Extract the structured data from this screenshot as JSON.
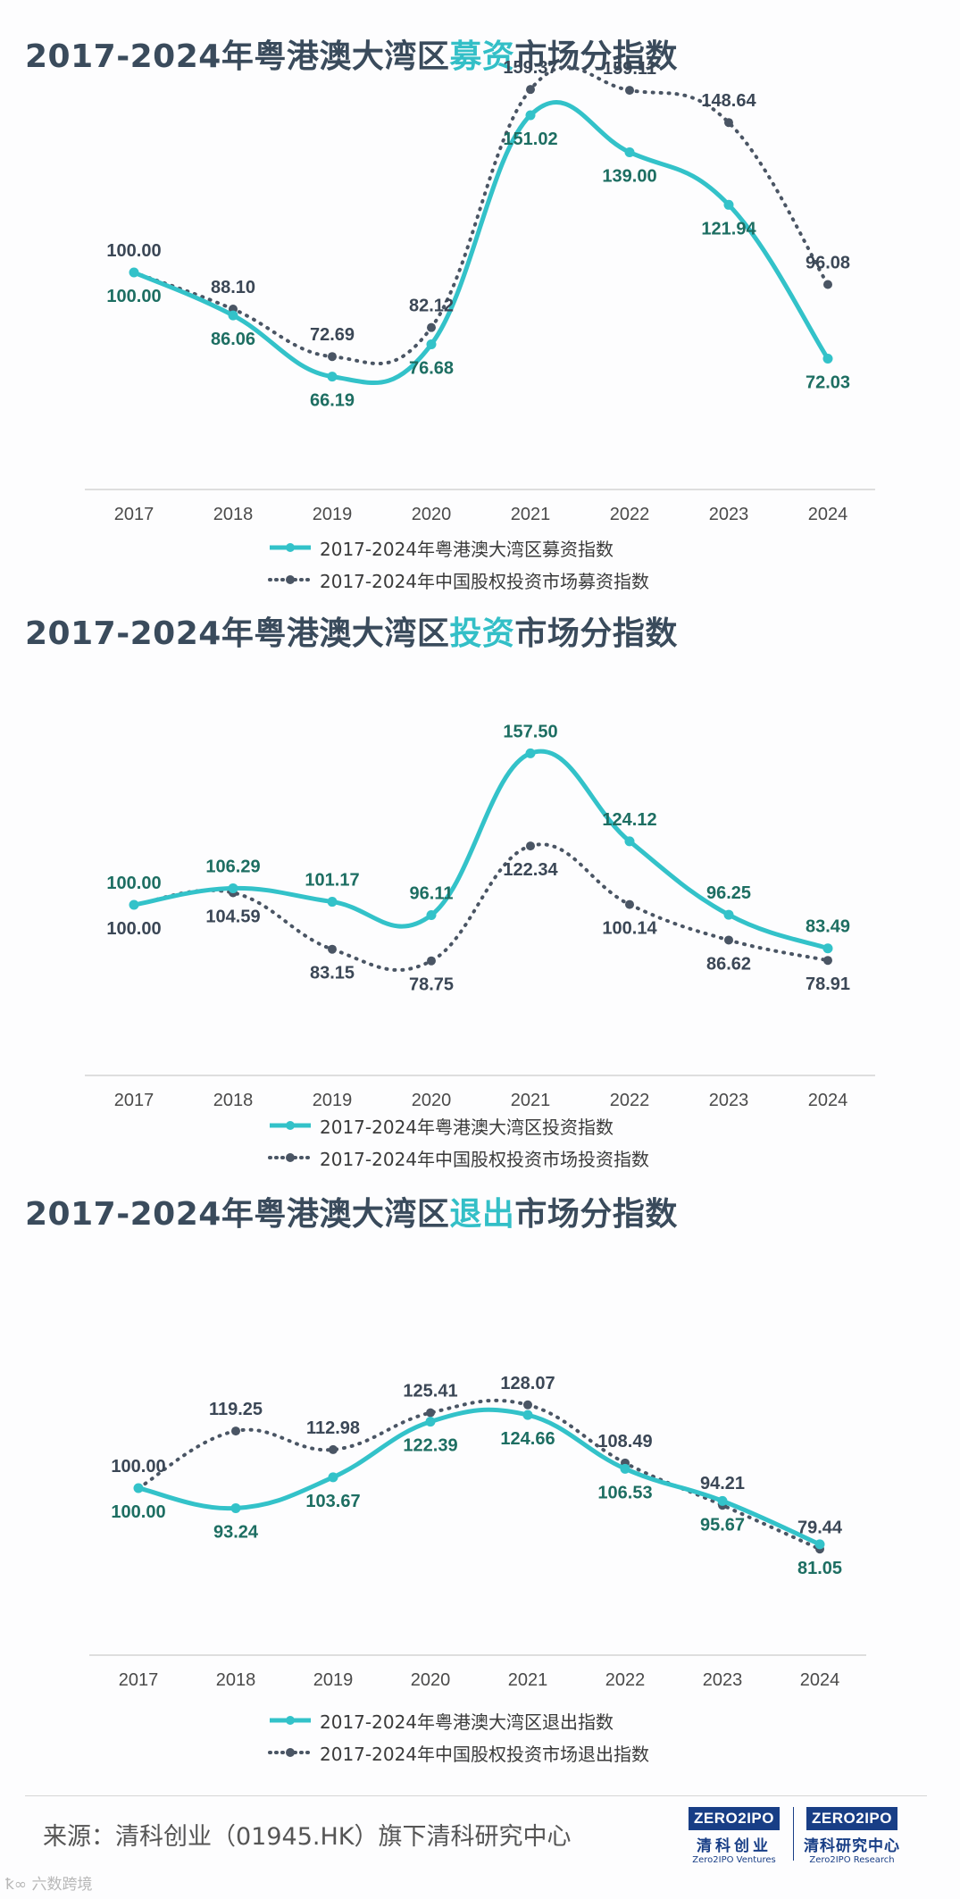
{
  "charts": [
    {
      "title_pre": "2017-2024年粤港澳大湾区",
      "title_hl": "募资",
      "title_post": "市场分指数",
      "legend_a": "2017-2024年粤港澳大湾区募资指数",
      "legend_b": "2017-2024年中国股权投资市场募资指数"
    },
    {
      "title_pre": "2017-2024年粤港澳大湾区",
      "title_hl": "投资",
      "title_post": "市场分指数",
      "legend_a": "2017-2024年粤港澳大湾区投资指数",
      "legend_b": "2017-2024年中国股权投资市场投资指数"
    },
    {
      "title_pre": "2017-2024年粤港澳大湾区",
      "title_hl": "退出",
      "title_post": "市场分指数",
      "legend_a": "2017-2024年粤港澳大湾区退出指数",
      "legend_b": "2017-2024年中国股权投资市场退出指数"
    }
  ],
  "chart_data": [
    {
      "type": "line",
      "title": "2017-2024年粤港澳大湾区募资市场分指数",
      "categories": [
        "2017",
        "2018",
        "2019",
        "2020",
        "2021",
        "2022",
        "2023",
        "2024"
      ],
      "series": [
        {
          "name": "2017-2024年粤港澳大湾区募资指数",
          "values": [
            100.0,
            86.06,
            66.19,
            76.68,
            151.02,
            139.0,
            121.94,
            72.03
          ],
          "labels": [
            "100.00",
            "86.06",
            "66.19",
            "76.68",
            "151.02",
            "139.00",
            "121.94",
            "72.03"
          ],
          "label_pos": [
            "below",
            "below",
            "below",
            "below",
            "below",
            "below",
            "below",
            "below"
          ]
        },
        {
          "name": "2017-2024年中国股权投资市场募资指数",
          "values": [
            100.0,
            88.1,
            72.69,
            82.12,
            159.37,
            159.11,
            148.64,
            96.08
          ],
          "labels": [
            "100.00",
            "88.10",
            "72.69",
            "82.12",
            "159.37",
            "159.11",
            "148.64",
            "96.08"
          ],
          "label_pos": [
            "above",
            "above",
            "above",
            "above",
            "above",
            "above",
            "above",
            "above"
          ]
        }
      ],
      "ylim": [
        0,
        175
      ],
      "grid": false
    },
    {
      "type": "line",
      "title": "2017-2024年粤港澳大湾区投资市场分指数",
      "categories": [
        "2017",
        "2018",
        "2019",
        "2020",
        "2021",
        "2022",
        "2023",
        "2024"
      ],
      "series": [
        {
          "name": "2017-2024年粤港澳大湾区投资指数",
          "values": [
            100.0,
            106.29,
            101.17,
            96.11,
            157.5,
            124.12,
            96.25,
            83.49
          ],
          "labels": [
            "100.00",
            "106.29",
            "101.17",
            "96.11",
            "157.50",
            "124.12",
            "96.25",
            "83.49"
          ],
          "label_pos": [
            "above",
            "above",
            "above",
            "above",
            "above",
            "above",
            "above",
            "above"
          ]
        },
        {
          "name": "2017-2024年中国股权投资市场投资指数",
          "values": [
            100.0,
            104.59,
            83.15,
            78.75,
            122.34,
            100.14,
            86.62,
            78.91
          ],
          "labels": [
            "100.00",
            "104.59",
            "83.15",
            "78.75",
            "122.34",
            "100.14",
            "86.62",
            "78.91"
          ],
          "label_pos": [
            "below",
            "below",
            "below",
            "below",
            "below",
            "below",
            "below",
            "below"
          ]
        }
      ],
      "ylim": [
        0,
        175
      ],
      "grid": false
    },
    {
      "type": "line",
      "title": "2017-2024年粤港澳大湾区退出市场分指数",
      "categories": [
        "2017",
        "2018",
        "2019",
        "2020",
        "2021",
        "2022",
        "2023",
        "2024"
      ],
      "series": [
        {
          "name": "2017-2024年粤港澳大湾区退出指数",
          "values": [
            100.0,
            93.24,
            103.67,
            122.39,
            124.66,
            106.53,
            95.67,
            81.05
          ],
          "labels": [
            "100.00",
            "93.24",
            "103.67",
            "122.39",
            "124.66",
            "106.53",
            "95.67",
            "81.05"
          ],
          "label_pos": [
            "below",
            "below",
            "below",
            "below",
            "below",
            "below",
            "below",
            "below"
          ]
        },
        {
          "name": "2017-2024年中国股权投资市场退出指数",
          "values": [
            100.0,
            119.25,
            112.98,
            125.41,
            128.07,
            108.49,
            94.21,
            79.44
          ],
          "labels": [
            "100.00",
            "119.25",
            "112.98",
            "125.41",
            "128.07",
            "108.49",
            "94.21",
            "79.44"
          ],
          "label_pos": [
            "above",
            "above",
            "above",
            "above",
            "above",
            "above",
            "above",
            "above"
          ]
        }
      ],
      "ylim": [
        0,
        175
      ],
      "grid": false
    }
  ],
  "colors": {
    "series_a": "#33c2c9",
    "series_b": "#4a5564",
    "label_a": "#1d6e62",
    "label_b": "#3b4756",
    "highlight": "#33bfc7",
    "logo": "#183e86"
  },
  "footer": {
    "source": "来源：清科创业（01945.HK）旗下清科研究中心",
    "logo1_mark": "ZERO2IPO",
    "logo1_cn": "清科创业",
    "logo1_en": "Zero2IPO Ventures",
    "logo2_mark": "ZERO2IPO",
    "logo2_cn": "清科研究中心",
    "logo2_en": "Zero2IPO Research",
    "watermark": "六数跨境"
  }
}
